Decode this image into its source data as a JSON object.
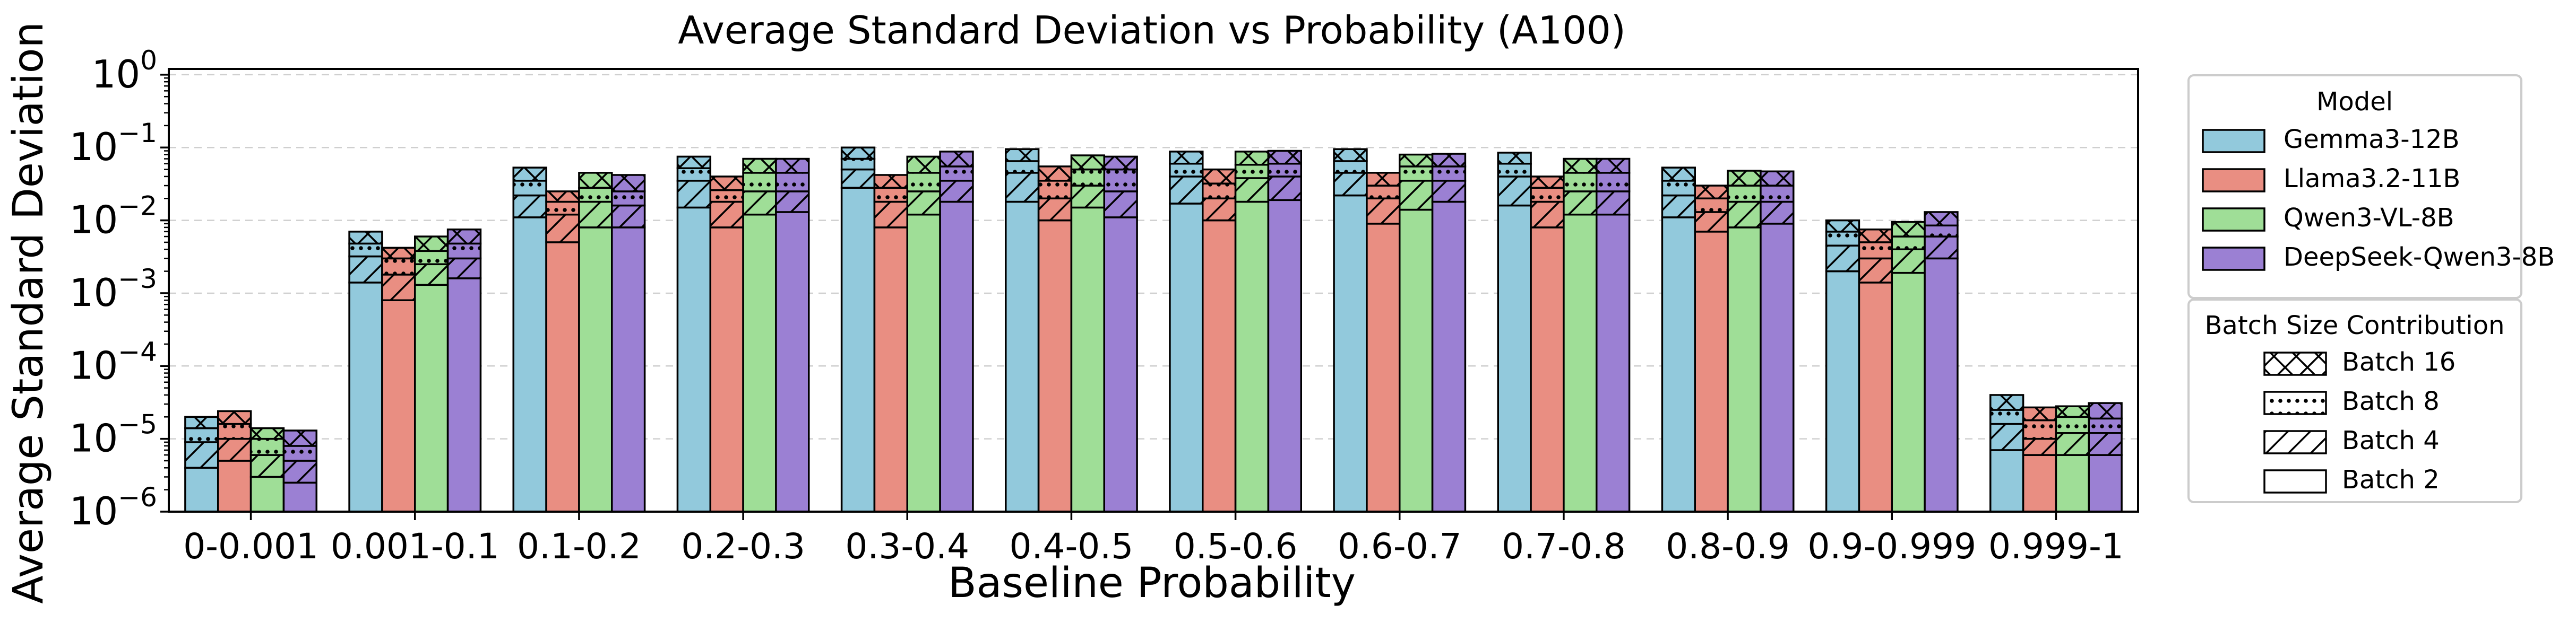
{
  "chart_data": {
    "type": "bar",
    "stacked": true,
    "title": "Average Standard Deviation vs Probability (A100)",
    "xlabel": "Baseline Probability",
    "ylabel": "Average Standard Deviation",
    "yscale": "log",
    "ylim": [
      1e-06,
      1.2
    ],
    "yticks": [
      {
        "value": 1e-06,
        "exp": "-6"
      },
      {
        "value": 1e-05,
        "exp": "-5"
      },
      {
        "value": 0.0001,
        "exp": "-4"
      },
      {
        "value": 0.001,
        "exp": "-3"
      },
      {
        "value": 0.01,
        "exp": "-2"
      },
      {
        "value": 0.1,
        "exp": "-1"
      },
      {
        "value": 1,
        "exp": "0"
      }
    ],
    "ytick_base": "10",
    "grid": "horizontal dashed",
    "categories": [
      "0-0.001",
      "0.001-0.1",
      "0.1-0.2",
      "0.2-0.3",
      "0.3-0.4",
      "0.4-0.5",
      "0.5-0.6",
      "0.6-0.7",
      "0.7-0.8",
      "0.8-0.9",
      "0.9-0.999",
      "0.999-1"
    ],
    "segment_order": [
      "Batch 2",
      "Batch 4",
      "Batch 8",
      "Batch 16"
    ],
    "series": [
      {
        "name": "Gemma3-12B",
        "color": "#92c9dc",
        "batch2": [
          4e-06,
          0.0014,
          0.011,
          0.015,
          0.028,
          0.018,
          0.017,
          0.022,
          0.016,
          0.011,
          0.002,
          7e-06
        ],
        "batch4": [
          9e-06,
          0.0032,
          0.022,
          0.035,
          0.05,
          0.045,
          0.04,
          0.045,
          0.04,
          0.022,
          0.0045,
          1.6e-05
        ],
        "batch8": [
          1.4e-05,
          0.0048,
          0.035,
          0.052,
          0.07,
          0.065,
          0.06,
          0.065,
          0.06,
          0.035,
          0.007,
          2.5e-05
        ],
        "batch16": [
          2e-05,
          0.007,
          0.053,
          0.075,
          0.1,
          0.095,
          0.088,
          0.095,
          0.085,
          0.053,
          0.01,
          4e-05
        ]
      },
      {
        "name": "Llama3.2-11B",
        "color": "#e98e82",
        "batch2": [
          5e-06,
          0.0008,
          0.005,
          0.008,
          0.008,
          0.01,
          0.01,
          0.009,
          0.008,
          0.007,
          0.0014,
          6e-06
        ],
        "batch4": [
          1e-05,
          0.0018,
          0.012,
          0.018,
          0.018,
          0.02,
          0.02,
          0.02,
          0.018,
          0.013,
          0.003,
          1e-05
        ],
        "batch8": [
          1.6e-05,
          0.003,
          0.018,
          0.026,
          0.028,
          0.035,
          0.032,
          0.03,
          0.028,
          0.02,
          0.005,
          1.8e-05
        ],
        "batch16": [
          2.4e-05,
          0.0042,
          0.025,
          0.04,
          0.042,
          0.055,
          0.05,
          0.045,
          0.04,
          0.03,
          0.0075,
          2.7e-05
        ]
      },
      {
        "name": "Qwen3-VL-8B",
        "color": "#9fde97",
        "batch2": [
          3e-06,
          0.0013,
          0.008,
          0.012,
          0.012,
          0.015,
          0.018,
          0.014,
          0.012,
          0.008,
          0.0019,
          6e-06
        ],
        "batch4": [
          6e-06,
          0.0025,
          0.018,
          0.025,
          0.025,
          0.03,
          0.038,
          0.035,
          0.025,
          0.018,
          0.004,
          1.2e-05
        ],
        "batch8": [
          1e-05,
          0.0038,
          0.028,
          0.045,
          0.045,
          0.05,
          0.058,
          0.055,
          0.045,
          0.03,
          0.006,
          2e-05
        ],
        "batch16": [
          1.4e-05,
          0.006,
          0.045,
          0.07,
          0.075,
          0.078,
          0.088,
          0.08,
          0.07,
          0.048,
          0.0095,
          2.8e-05
        ]
      },
      {
        "name": "DeepSeek-Qwen3-8B",
        "color": "#9b80d3",
        "batch2": [
          2.5e-06,
          0.0016,
          0.008,
          0.013,
          0.018,
          0.011,
          0.019,
          0.018,
          0.012,
          0.009,
          0.003,
          6e-06
        ],
        "batch4": [
          5e-06,
          0.003,
          0.016,
          0.025,
          0.035,
          0.025,
          0.04,
          0.035,
          0.025,
          0.018,
          0.006,
          1.2e-05
        ],
        "batch8": [
          8e-06,
          0.0048,
          0.025,
          0.045,
          0.055,
          0.05,
          0.06,
          0.055,
          0.045,
          0.03,
          0.0085,
          1.9e-05
        ],
        "batch16": [
          1.3e-05,
          0.0075,
          0.042,
          0.07,
          0.088,
          0.075,
          0.09,
          0.082,
          0.07,
          0.047,
          0.013,
          3.1e-05
        ]
      }
    ],
    "legend_models": {
      "title": "Model",
      "placement": "right, outside plot"
    },
    "legend_batches": {
      "title": "Batch Size Contribution",
      "placement": "right, below model legend",
      "items": [
        {
          "label": "Batch 16",
          "hatch": "cross"
        },
        {
          "label": "Batch 8",
          "hatch": "dots"
        },
        {
          "label": "Batch 4",
          "hatch": "diagonal"
        },
        {
          "label": "Batch 2",
          "hatch": "none"
        }
      ]
    }
  }
}
